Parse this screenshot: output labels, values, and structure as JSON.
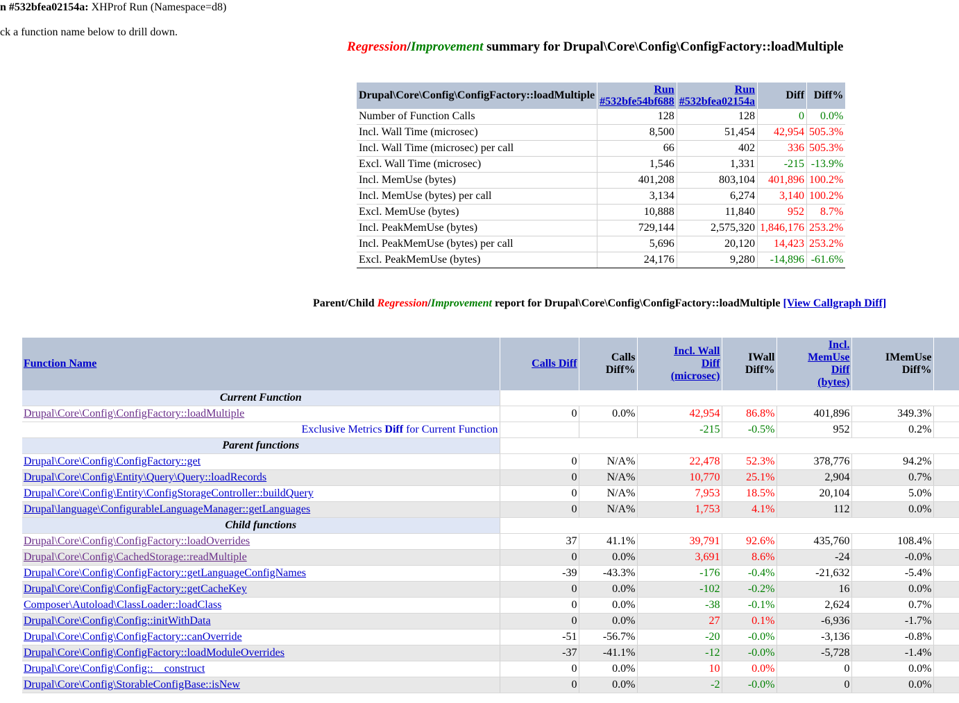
{
  "header": {
    "run_label": "n #532bfea02154a:",
    "run_desc": "XHProf Run (Namespace=d8)",
    "drill_hint": "ck a function name below to drill down."
  },
  "summary": {
    "title_regression": "Regression",
    "title_slash": "/",
    "title_improvement": "Improvement",
    "title_rest": " summary for Drupal\\Core\\Config\\ConfigFactory::loadMultiple",
    "col_function": "Drupal\\Core\\Config\\ConfigFactory::loadMultiple",
    "col_run1_a": "Run",
    "col_run1_b": "#532bfe54bf688",
    "col_run2_a": "Run",
    "col_run2_b": "#532bfea02154a",
    "col_diff": "Diff",
    "col_diffpct": "Diff%",
    "rows": [
      {
        "metric": "Number of Function Calls",
        "run1": "128",
        "run2": "128",
        "diff": "0",
        "pct": "0.0%",
        "tone": "green"
      },
      {
        "metric": "Incl. Wall Time (microsec)",
        "run1": "8,500",
        "run2": "51,454",
        "diff": "42,954",
        "pct": "505.3%",
        "tone": "red"
      },
      {
        "metric": "Incl. Wall Time (microsec) per call",
        "run1": "66",
        "run2": "402",
        "diff": "336",
        "pct": "505.3%",
        "tone": "red"
      },
      {
        "metric": "Excl. Wall Time (microsec)",
        "run1": "1,546",
        "run2": "1,331",
        "diff": "-215",
        "pct": "-13.9%",
        "tone": "green"
      },
      {
        "metric": "Incl. MemUse (bytes)",
        "run1": "401,208",
        "run2": "803,104",
        "diff": "401,896",
        "pct": "100.2%",
        "tone": "red"
      },
      {
        "metric": "Incl. MemUse (bytes) per call",
        "run1": "3,134",
        "run2": "6,274",
        "diff": "3,140",
        "pct": "100.2%",
        "tone": "red"
      },
      {
        "metric": "Excl. MemUse (bytes)",
        "run1": "10,888",
        "run2": "11,840",
        "diff": "952",
        "pct": "8.7%",
        "tone": "red"
      },
      {
        "metric": "Incl. PeakMemUse (bytes)",
        "run1": "729,144",
        "run2": "2,575,320",
        "diff": "1,846,176",
        "pct": "253.2%",
        "tone": "red"
      },
      {
        "metric": "Incl. PeakMemUse (bytes) per call",
        "run1": "5,696",
        "run2": "20,120",
        "diff": "14,423",
        "pct": "253.2%",
        "tone": "red"
      },
      {
        "metric": "Excl. PeakMemUse (bytes)",
        "run1": "24,176",
        "run2": "9,280",
        "diff": "-14,896",
        "pct": "-61.6%",
        "tone": "green"
      }
    ]
  },
  "report": {
    "title_prefix": "Parent/Child ",
    "title_regression": "Regression",
    "title_slash": "/",
    "title_improvement": "Improvement",
    "title_rest": " report for Drupal\\Core\\Config\\ConfigFactory::loadMultiple ",
    "callgraph_link": "[View Callgraph Diff]"
  },
  "main": {
    "columns": {
      "function_name": "Function Name",
      "calls_diff": "Calls Diff",
      "calls_diffpct_a": "Calls",
      "calls_diffpct_b": "Diff%",
      "iwall_diff_a": "Incl. Wall",
      "iwall_diff_b": "Diff",
      "iwall_diff_c": "(microsec)",
      "iwall_pct_a": "IWall",
      "iwall_pct_b": "Diff%",
      "imem_diff_a": "Incl.",
      "imem_diff_b": "MemUse",
      "imem_diff_c": "Diff",
      "imem_diff_d": "(bytes)",
      "imem_pct_a": "IMemUse",
      "imem_pct_b": "Diff%"
    },
    "section_current": "Current Function",
    "section_parent": "Parent functions",
    "section_child": "Child functions",
    "current": {
      "name": "Drupal\\Core\\Config\\ConfigFactory::loadMultiple",
      "visited": true,
      "calls": "0",
      "callspct": "0.0%",
      "iwall": "42,954",
      "iwallpct": "86.8%",
      "tone": "red",
      "imem": "401,896",
      "imempct": "349.3%"
    },
    "exclusive": {
      "label_a": "Exclusive Metrics ",
      "label_b": "Diff",
      "label_c": " for Current Function",
      "iwall": "-215",
      "iwallpct": "-0.5%",
      "tone": "green",
      "imem": "952",
      "imempct": "0.2%"
    },
    "parents": [
      {
        "name": "Drupal\\Core\\Config\\ConfigFactory::get",
        "visited": false,
        "calls": "0",
        "callspct": "N/A%",
        "iwall": "22,478",
        "iwallpct": "52.3%",
        "tone": "red",
        "imem": "378,776",
        "imempct": "94.2%"
      },
      {
        "name": "Drupal\\Core\\Config\\Entity\\Query\\Query::loadRecords",
        "visited": false,
        "calls": "0",
        "callspct": "N/A%",
        "iwall": "10,770",
        "iwallpct": "25.1%",
        "tone": "red",
        "imem": "2,904",
        "imempct": "0.7%"
      },
      {
        "name": "Drupal\\Core\\Config\\Entity\\ConfigStorageController::buildQuery",
        "visited": false,
        "calls": "0",
        "callspct": "N/A%",
        "iwall": "7,953",
        "iwallpct": "18.5%",
        "tone": "red",
        "imem": "20,104",
        "imempct": "5.0%"
      },
      {
        "name": "Drupal\\language\\ConfigurableLanguageManager::getLanguages",
        "visited": false,
        "calls": "0",
        "callspct": "N/A%",
        "iwall": "1,753",
        "iwallpct": "4.1%",
        "tone": "red",
        "imem": "112",
        "imempct": "0.0%"
      }
    ],
    "children": [
      {
        "name": "Drupal\\Core\\Config\\ConfigFactory::loadOverrides",
        "visited": true,
        "calls": "37",
        "callspct": "41.1%",
        "iwall": "39,791",
        "iwallpct": "92.6%",
        "tone": "red",
        "imem": "435,760",
        "imempct": "108.4%"
      },
      {
        "name": "Drupal\\Core\\Config\\CachedStorage::readMultiple",
        "visited": true,
        "calls": "0",
        "callspct": "0.0%",
        "iwall": "3,691",
        "iwallpct": "8.6%",
        "tone": "red",
        "imem": "-24",
        "imempct": "-0.0%"
      },
      {
        "name": "Drupal\\Core\\Config\\ConfigFactory::getLanguageConfigNames",
        "visited": false,
        "calls": "-39",
        "callspct": "-43.3%",
        "iwall": "-176",
        "iwallpct": "-0.4%",
        "tone": "green",
        "imem": "-21,632",
        "imempct": "-5.4%"
      },
      {
        "name": "Drupal\\Core\\Config\\ConfigFactory::getCacheKey",
        "visited": false,
        "calls": "0",
        "callspct": "0.0%",
        "iwall": "-102",
        "iwallpct": "-0.2%",
        "tone": "green",
        "imem": "16",
        "imempct": "0.0%"
      },
      {
        "name": "Composer\\Autoload\\ClassLoader::loadClass",
        "visited": false,
        "calls": "0",
        "callspct": "0.0%",
        "iwall": "-38",
        "iwallpct": "-0.1%",
        "tone": "green",
        "imem": "2,624",
        "imempct": "0.7%"
      },
      {
        "name": "Drupal\\Core\\Config\\Config::initWithData",
        "visited": false,
        "calls": "0",
        "callspct": "0.0%",
        "iwall": "27",
        "iwallpct": "0.1%",
        "tone": "red",
        "imem": "-6,936",
        "imempct": "-1.7%"
      },
      {
        "name": "Drupal\\Core\\Config\\ConfigFactory::canOverride",
        "visited": false,
        "calls": "-51",
        "callspct": "-56.7%",
        "iwall": "-20",
        "iwallpct": "-0.0%",
        "tone": "green",
        "imem": "-3,136",
        "imempct": "-0.8%"
      },
      {
        "name": "Drupal\\Core\\Config\\ConfigFactory::loadModuleOverrides",
        "visited": false,
        "calls": "-37",
        "callspct": "-41.1%",
        "iwall": "-12",
        "iwallpct": "-0.0%",
        "tone": "green",
        "imem": "-5,728",
        "imempct": "-1.4%"
      },
      {
        "name": "Drupal\\Core\\Config\\Config::__construct",
        "visited": false,
        "calls": "0",
        "callspct": "0.0%",
        "iwall": "10",
        "iwallpct": "0.0%",
        "tone": "red",
        "imem": "0",
        "imempct": "0.0%"
      },
      {
        "name": "Drupal\\Core\\Config\\StorableConfigBase::isNew",
        "visited": false,
        "calls": "0",
        "callspct": "0.0%",
        "iwall": "-2",
        "iwallpct": "-0.0%",
        "tone": "green",
        "imem": "0",
        "imempct": "0.0%"
      }
    ]
  }
}
